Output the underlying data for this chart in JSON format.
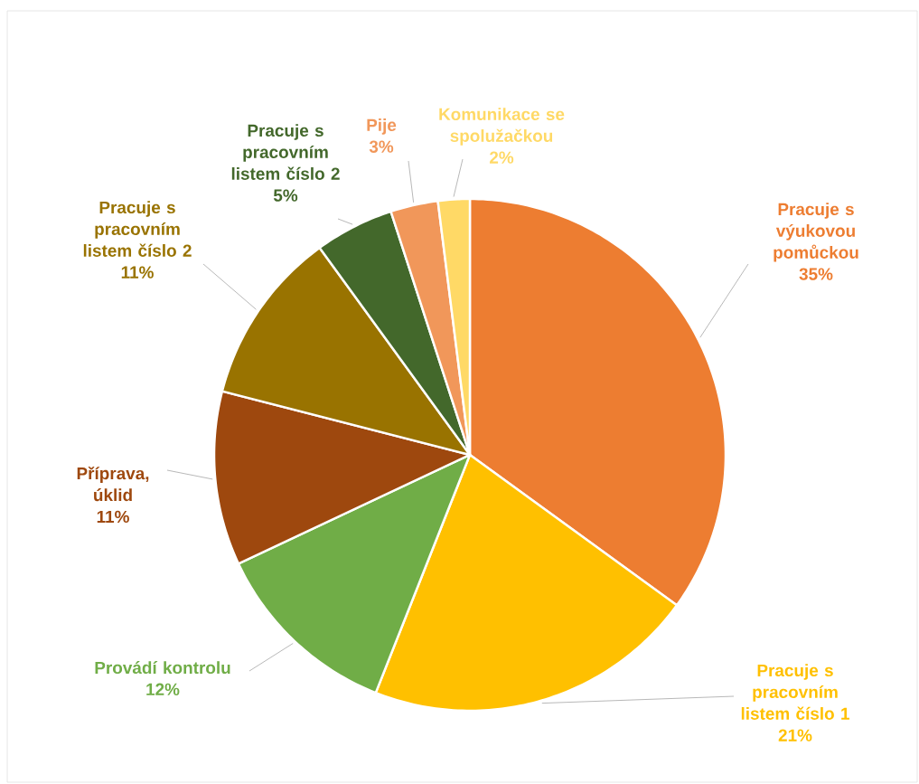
{
  "chart_data": {
    "type": "pie",
    "categories": [
      "Pracuje s výukovou pomůckou",
      "Pracuje s pracovním listem číslo 1",
      "Provádí kontrolu",
      "Příprava, úklid",
      "Pracuje s pracovním listem číslo 2",
      "Pracuje s pracovním listem číslo 2",
      "Pije",
      "Komunikace se spolužačkou"
    ],
    "values": [
      35,
      21,
      12,
      11,
      11,
      5,
      3,
      2
    ],
    "value_labels": [
      "35%",
      "21%",
      "12%",
      "11%",
      "11%",
      "5%",
      "3%",
      "2%"
    ],
    "colors": [
      "#ed7d31",
      "#ffc000",
      "#70ad47",
      "#9e480e",
      "#997300",
      "#43682b",
      "#f1975a",
      "#ffd966"
    ]
  }
}
